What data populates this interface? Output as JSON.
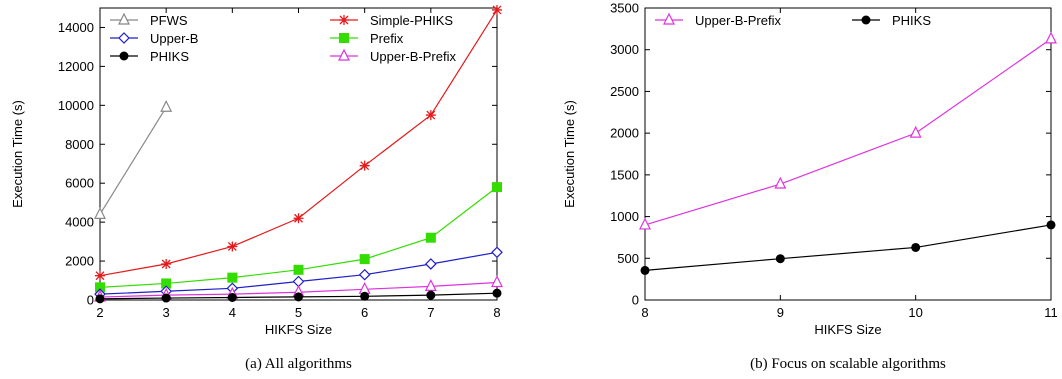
{
  "chart_data": [
    {
      "type": "line",
      "caption": "(a) All algorithms",
      "xlabel": "HIKFS Size",
      "ylabel": "Execution Time (s)",
      "xlim": [
        2,
        8
      ],
      "ylim": [
        0,
        15000
      ],
      "xticks": [
        2,
        3,
        4,
        5,
        6,
        7,
        8
      ],
      "yticks": [
        0,
        2000,
        4000,
        6000,
        8000,
        10000,
        12000,
        14000
      ],
      "grid": false,
      "legend_position": "top-left",
      "series": [
        {
          "name": "PFWS",
          "color": "#888888",
          "marker": "triangle-open",
          "x": [
            2,
            3
          ],
          "y": [
            4400,
            9900
          ]
        },
        {
          "name": "Simple-PHIKS",
          "color": "#e41a1c",
          "marker": "star",
          "x": [
            2,
            3,
            4,
            5,
            6,
            7,
            8
          ],
          "y": [
            1250,
            1850,
            2750,
            4200,
            6900,
            9500,
            14900
          ]
        },
        {
          "name": "Prefix",
          "color": "#33dd00",
          "marker": "square-filled",
          "x": [
            2,
            3,
            4,
            5,
            6,
            7,
            8
          ],
          "y": [
            650,
            850,
            1150,
            1550,
            2100,
            3200,
            5800
          ]
        },
        {
          "name": "Upper-B",
          "color": "#1f1fc8",
          "marker": "diamond-open",
          "x": [
            2,
            3,
            4,
            5,
            6,
            7,
            8
          ],
          "y": [
            300,
            450,
            600,
            950,
            1300,
            1850,
            2450
          ]
        },
        {
          "name": "Upper-B-Prefix",
          "color": "#dd33dd",
          "marker": "triangle-open",
          "x": [
            2,
            3,
            4,
            5,
            6,
            7,
            8
          ],
          "y": [
            150,
            250,
            300,
            400,
            550,
            700,
            900
          ]
        },
        {
          "name": "PHIKS",
          "color": "#000000",
          "marker": "circle-filled",
          "x": [
            2,
            3,
            4,
            5,
            6,
            7,
            8
          ],
          "y": [
            60,
            100,
            130,
            160,
            190,
            250,
            350
          ]
        }
      ]
    },
    {
      "type": "line",
      "caption": "(b) Focus on scalable algorithms",
      "xlabel": "HIKFS Size",
      "ylabel": "Execution Time (s)",
      "xlim": [
        8,
        11
      ],
      "ylim": [
        0,
        3500
      ],
      "xticks": [
        8,
        9,
        10,
        11
      ],
      "yticks": [
        0,
        500,
        1000,
        1500,
        2000,
        2500,
        3000,
        3500
      ],
      "grid": false,
      "legend_position": "top-left",
      "series": [
        {
          "name": "Upper-B-Prefix",
          "color": "#dd33dd",
          "marker": "triangle-open",
          "x": [
            8,
            9,
            10,
            11
          ],
          "y": [
            900,
            1390,
            2000,
            3130
          ]
        },
        {
          "name": "PHIKS",
          "color": "#000000",
          "marker": "circle-filled",
          "x": [
            8,
            9,
            10,
            11
          ],
          "y": [
            355,
            495,
            630,
            900
          ]
        }
      ]
    }
  ]
}
